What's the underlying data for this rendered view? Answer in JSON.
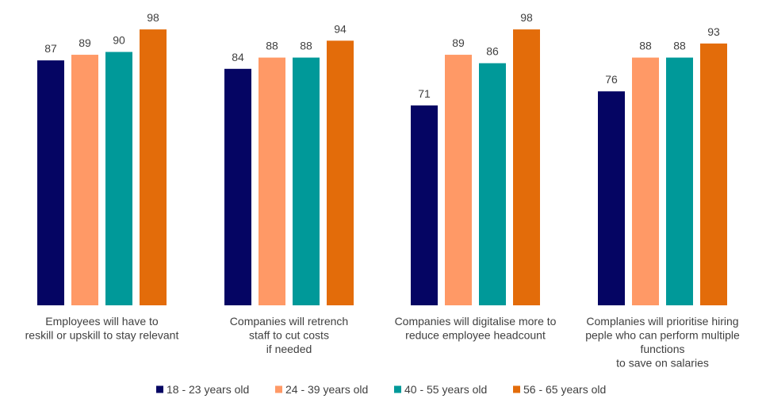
{
  "chart_data": {
    "type": "bar",
    "title": "",
    "xlabel": "",
    "ylabel": "",
    "ylim": [
      0,
      100
    ],
    "grid": false,
    "legend_position": "bottom",
    "categories": [
      [
        "Employees will have to",
        "reskill or upskill to stay relevant"
      ],
      [
        "Companies will retrench",
        "staff to cut costs",
        "if needed"
      ],
      [
        "Companies will digitalise more to",
        "reduce employee headcount"
      ],
      [
        "Complanies will prioritise hiring",
        "peple who can perform multiple",
        "functions",
        "to save on salaries"
      ]
    ],
    "series": [
      {
        "name": "18 - 23 years old",
        "color": "#050563",
        "values": [
          87,
          84,
          71,
          76
        ]
      },
      {
        "name": "24 - 39 years old",
        "color": "#FF9966",
        "values": [
          89,
          88,
          89,
          88
        ]
      },
      {
        "name": "40 - 55 years old",
        "color": "#009999",
        "values": [
          90,
          88,
          86,
          88
        ]
      },
      {
        "name": "56 - 65 years old",
        "color": "#E36C0A",
        "values": [
          98,
          94,
          98,
          93
        ]
      }
    ]
  }
}
